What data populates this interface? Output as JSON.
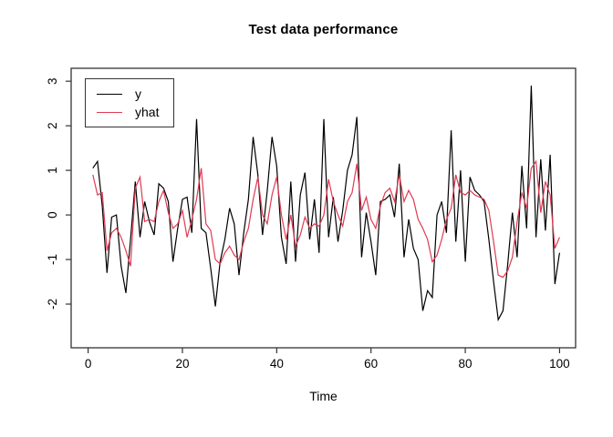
{
  "title": "Test data performance",
  "axes": {
    "x_label": "Time",
    "x_ticks": [
      0,
      20,
      40,
      60,
      80,
      100
    ],
    "y_ticks": [
      -2,
      -1,
      0,
      1,
      2,
      3
    ],
    "xlim": [
      -3.6,
      103.4
    ],
    "ylim": [
      -2.98,
      3.29
    ]
  },
  "legend": {
    "position": "topleft",
    "items": [
      {
        "label": "y",
        "color": "#000000"
      },
      {
        "label": "yhat",
        "color": "#e03a52"
      }
    ]
  },
  "chart_data": {
    "type": "line",
    "title": "Test data performance",
    "xlabel": "Time",
    "ylabel": "",
    "grid": false,
    "legend_position": "topleft",
    "x_start": 1,
    "x_step": 1,
    "xlim": [
      -3.6,
      103.4
    ],
    "ylim": [
      -2.98,
      3.29
    ],
    "series": [
      {
        "name": "y",
        "color": "#000000",
        "values": [
          1.05,
          1.2,
          0.2,
          -1.3,
          -0.05,
          0,
          -1.15,
          -1.75,
          -0.55,
          0.75,
          -0.5,
          0.3,
          -0.15,
          -0.45,
          0.7,
          0.6,
          0.3,
          -1.05,
          -0.3,
          0.35,
          0.4,
          -0.4,
          2.15,
          -0.3,
          -0.4,
          -1.2,
          -2.05,
          -1.05,
          -0.55,
          0.15,
          -0.2,
          -1.35,
          -0.4,
          0.35,
          1.75,
          0.9,
          -0.45,
          0.55,
          1.75,
          1.1,
          -0.5,
          -1.1,
          0.75,
          -1.05,
          0.45,
          0.95,
          -0.55,
          0.35,
          -0.85,
          2.15,
          -0.5,
          0.4,
          -0.6,
          0.1,
          1,
          1.35,
          2.2,
          -0.95,
          0.05,
          -0.6,
          -1.35,
          0.3,
          0.35,
          0.45,
          -0.05,
          1.15,
          -0.95,
          -0.1,
          -0.75,
          -1,
          -2.15,
          -1.7,
          -1.85,
          0,
          0.3,
          -0.4,
          1.9,
          -0.6,
          1,
          -1.05,
          0.85,
          0.55,
          0.45,
          0.3,
          -0.55,
          -1.5,
          -2.35,
          -2.15,
          -1.1,
          0.05,
          -0.95,
          1.1,
          -0.3,
          2.9,
          -0.5,
          1.25,
          -0.35,
          1.35,
          -1.55,
          -0.85
        ]
      },
      {
        "name": "yhat",
        "color": "#e03a52",
        "values": [
          0.9,
          0.45,
          0.5,
          -0.8,
          -0.4,
          -0.3,
          -0.5,
          -0.8,
          -1.15,
          0.6,
          0.85,
          -0.15,
          -0.1,
          -0.15,
          0.3,
          0.55,
          0.05,
          -0.3,
          -0.2,
          0.1,
          -0.5,
          -0.1,
          0.35,
          1.05,
          -0.2,
          -0.35,
          -1,
          -1.1,
          -0.85,
          -0.7,
          -0.9,
          -1,
          -0.6,
          -0.3,
          0.35,
          0.85,
          0,
          -0.2,
          0.45,
          0.85,
          0,
          -0.55,
          0,
          -0.7,
          -0.45,
          -0.05,
          -0.3,
          -0.2,
          -0.25,
          0,
          0.8,
          0.3,
          0,
          -0.25,
          0.3,
          0.5,
          1.15,
          0.1,
          0.4,
          -0.1,
          -0.3,
          0.2,
          0.5,
          0.6,
          0.3,
          0.9,
          0.3,
          0.55,
          0.35,
          -0.1,
          -0.3,
          -0.55,
          -1.05,
          -0.9,
          -0.55,
          -0.1,
          0.15,
          0.9,
          0.5,
          0.45,
          0.55,
          0.45,
          0.4,
          0.35,
          0.1,
          -0.6,
          -1.35,
          -1.4,
          -1.25,
          -0.95,
          -0.15,
          0.5,
          0.15,
          1.05,
          1.2,
          0.05,
          0.75,
          0.45,
          -0.75,
          -0.5
        ]
      }
    ]
  }
}
